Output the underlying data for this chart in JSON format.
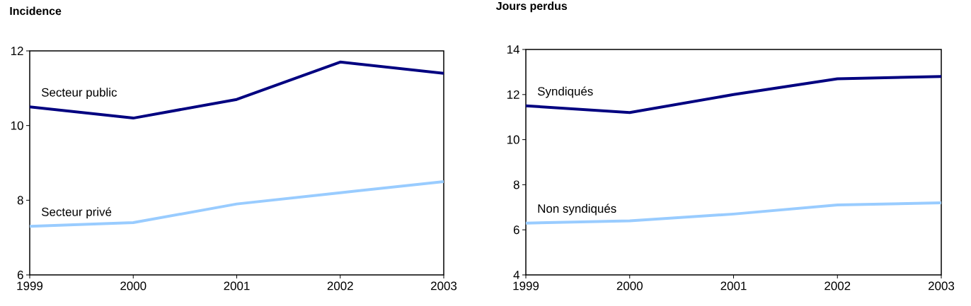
{
  "chart_data": [
    {
      "type": "line",
      "title": "Incidence",
      "x": [
        1999,
        2000,
        2001,
        2002,
        2003
      ],
      "xlim": [
        1999,
        2003
      ],
      "xticks": [
        1999,
        2000,
        2001,
        2002,
        2003
      ],
      "ylim": [
        6,
        12
      ],
      "yticks": [
        6,
        8,
        10,
        12
      ],
      "series": [
        {
          "name": "Secteur public",
          "color": "#000080",
          "values": [
            10.5,
            10.2,
            10.7,
            11.7,
            11.4
          ]
        },
        {
          "name": "Secteur privé",
          "color": "#99ccff",
          "values": [
            7.3,
            7.4,
            7.9,
            8.2,
            8.5
          ]
        }
      ]
    },
    {
      "type": "line",
      "title": "Jours perdus",
      "x": [
        1999,
        2000,
        2001,
        2002,
        2003
      ],
      "xlim": [
        1999,
        2003
      ],
      "xticks": [
        1999,
        2000,
        2001,
        2002,
        2003
      ],
      "ylim": [
        4,
        14
      ],
      "yticks": [
        4,
        6,
        8,
        10,
        12,
        14
      ],
      "series": [
        {
          "name": "Syndiqués",
          "color": "#000080",
          "values": [
            11.5,
            11.2,
            12.0,
            12.7,
            12.8
          ]
        },
        {
          "name": "Non syndiqués",
          "color": "#99ccff",
          "values": [
            6.3,
            6.4,
            6.7,
            7.1,
            7.2
          ]
        }
      ]
    }
  ]
}
